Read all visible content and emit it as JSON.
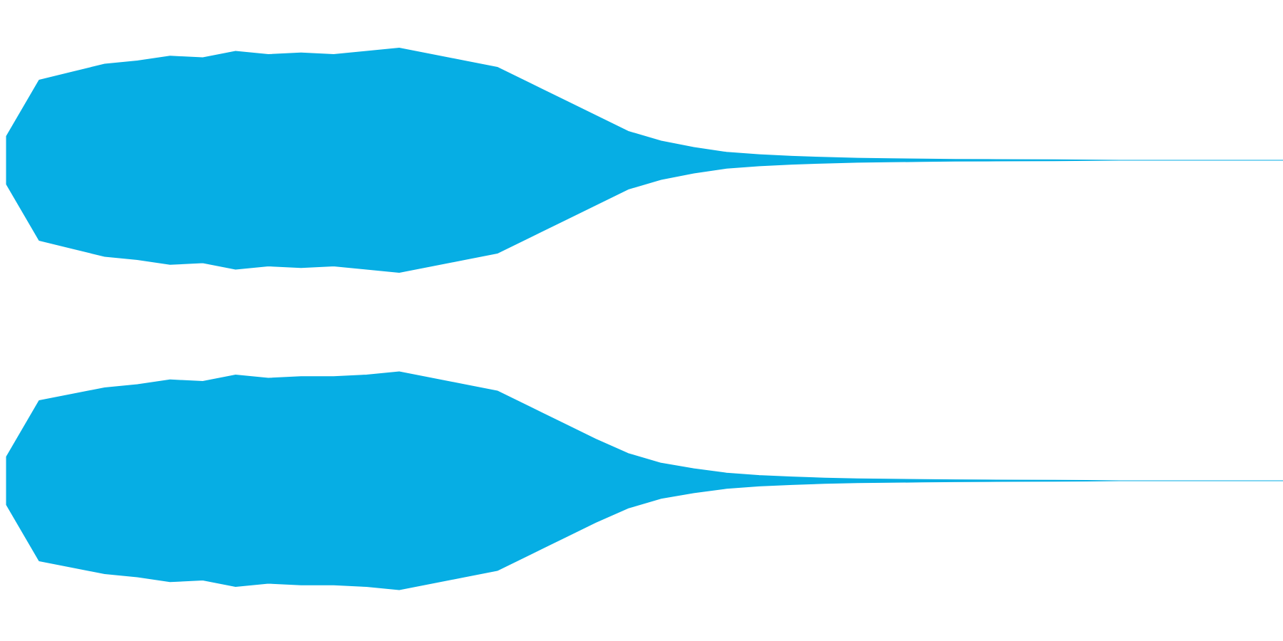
{
  "chart_data": {
    "type": "waveform",
    "color": "#06aee4",
    "series": [
      {
        "values": [
          0.15,
          0.5,
          0.55,
          0.6,
          0.62,
          0.65,
          0.64,
          0.68,
          0.66,
          0.67,
          0.66,
          0.68,
          0.7,
          0.66,
          0.62,
          0.58,
          0.48,
          0.38,
          0.28,
          0.18,
          0.12,
          0.08,
          0.05,
          0.035,
          0.025,
          0.018,
          0.013,
          0.01,
          0.008,
          0.006,
          0.005,
          0.004,
          0.003,
          0.002,
          0,
          0,
          0,
          0,
          0,
          0
        ]
      },
      {
        "values": [
          0.15,
          0.5,
          0.54,
          0.58,
          0.6,
          0.63,
          0.62,
          0.66,
          0.64,
          0.65,
          0.65,
          0.66,
          0.68,
          0.64,
          0.6,
          0.56,
          0.46,
          0.36,
          0.26,
          0.17,
          0.11,
          0.075,
          0.048,
          0.033,
          0.024,
          0.017,
          0.012,
          0.01,
          0.008,
          0.006,
          0.005,
          0.004,
          0.003,
          0.002,
          0,
          0,
          0,
          0,
          0,
          0
        ]
      }
    ]
  }
}
